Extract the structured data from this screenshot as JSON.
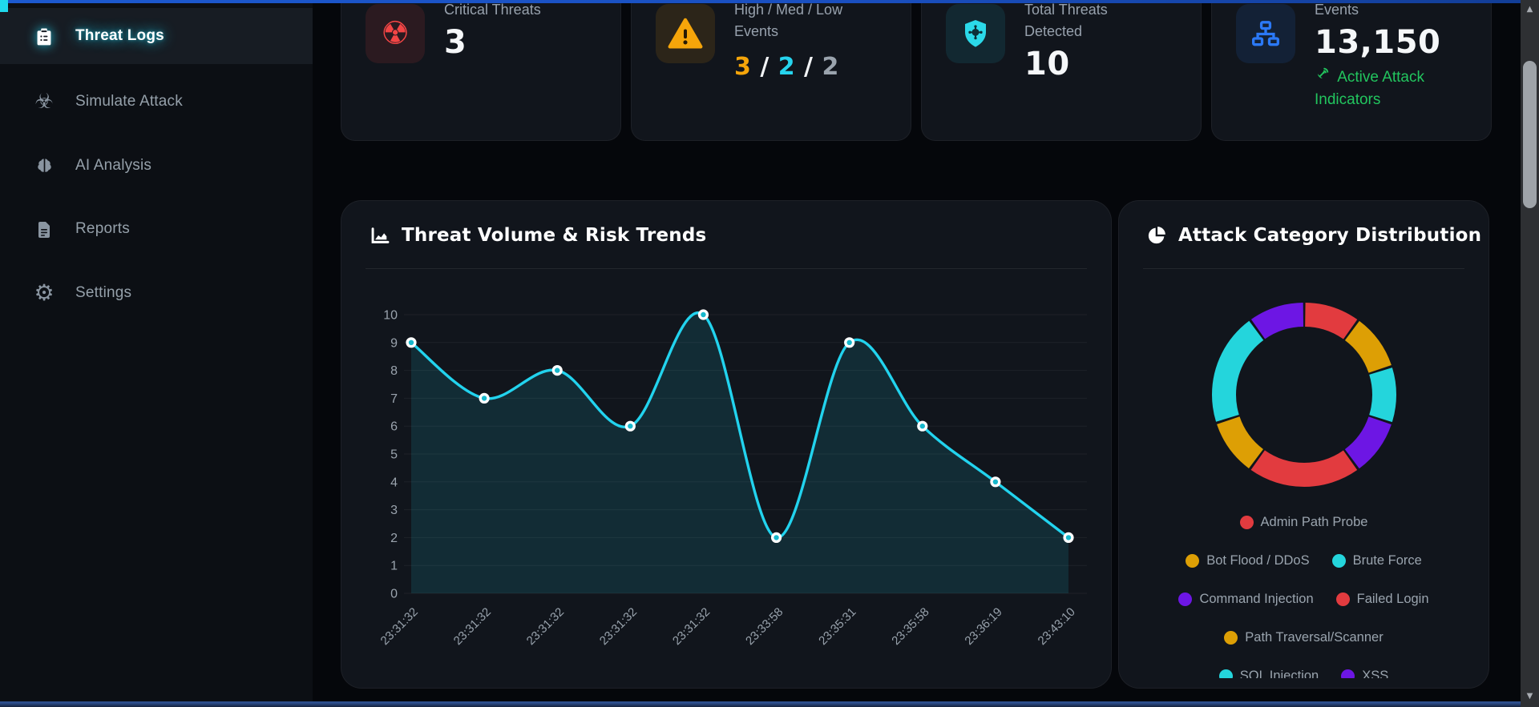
{
  "colors": {
    "accent_cyan": "#22d3ee",
    "red": "#e23b3f",
    "amber": "#dd9f05",
    "cyan": "#24d5dc",
    "purple": "#6d16e4",
    "green": "#22c55e",
    "blue": "#2b79f7",
    "top_strip": "#1c59cf",
    "top_strip_block": "#1fd9ec",
    "bottom_strip_top": "#2c4e8c",
    "bottom_strip": "#15223c"
  },
  "sidebar": {
    "items": [
      {
        "label": "Threat Logs",
        "icon": "clipboard-list-icon",
        "active": true
      },
      {
        "label": "Simulate Attack",
        "icon": "biohazard-icon",
        "active": false
      },
      {
        "label": "AI Analysis",
        "icon": "brain-icon",
        "active": false
      },
      {
        "label": "Reports",
        "icon": "file-report-icon",
        "active": false
      },
      {
        "label": "Settings",
        "icon": "gear-icon",
        "active": false
      }
    ]
  },
  "stat_cards": [
    {
      "id": "critical-threats",
      "icon": "radiation-icon",
      "icon_color": "#f24545",
      "icon_bg": "rgba(239,68,68,0.12)",
      "label": "Critical Threats",
      "value": "3"
    },
    {
      "id": "high-med-low-events",
      "icon": "warning-icon",
      "icon_color": "#f5a50a",
      "icon_bg": "rgba(245,158,11,0.12)",
      "label": "High / Med / Low Events",
      "value_parts": [
        {
          "text": "3",
          "color": "#f5a50a"
        },
        {
          "text": " / ",
          "color": "#f2f4f6"
        },
        {
          "text": "2",
          "color": "#26d4ee"
        },
        {
          "text": " / ",
          "color": "#f2f4f6"
        },
        {
          "text": "2",
          "color": "#9aa3ad"
        }
      ]
    },
    {
      "id": "total-threats-detected",
      "icon": "shield-virus-icon",
      "icon_color": "#2bd9e9",
      "icon_bg": "rgba(34,211,238,0.10)",
      "label": "Total Threats Detected",
      "value": "10"
    },
    {
      "id": "events",
      "icon": "network-icon",
      "icon_color": "#2b79f7",
      "icon_bg": "rgba(43,121,247,0.12)",
      "label": "Events",
      "value": "13,150",
      "sub_icon": "satellite-dish-icon",
      "sub_text": "Active Attack Indicators"
    }
  ],
  "trend_panel": {
    "icon": "area-chart-icon",
    "title": "Threat Volume & Risk Trends",
    "chart_data": {
      "type": "area",
      "x": [
        "23:31:32",
        "23:31:32",
        "23:31:32",
        "23:31:32",
        "23:31:32",
        "23:33:58",
        "23:35:31",
        "23:35:58",
        "23:36:19",
        "23:43:10"
      ],
      "values": [
        9,
        7,
        8,
        6,
        10,
        2,
        9,
        6,
        4,
        2
      ],
      "ylim": [
        0,
        10
      ],
      "ytick_step": 1,
      "grid": "on",
      "legend": "none",
      "line_color": "#22d3ee",
      "fill_color": "rgba(34,211,238,0.12)",
      "point_outer": "#ffffff",
      "point_inner": "#17b8cc"
    }
  },
  "donut_panel": {
    "icon": "pie-chart-icon",
    "title": "Attack Category Distribution",
    "chart_data": {
      "type": "doughnut",
      "labels": [
        "Admin Path Probe",
        "Bot Flood / DDoS",
        "Brute Force",
        "Command Injection",
        "Failed Login",
        "Path Traversal/Scanner",
        "SQL Injection",
        "XSS"
      ],
      "values": [
        1,
        1,
        1,
        1,
        2,
        1,
        2,
        1
      ],
      "colors": [
        "#e23b3f",
        "#dd9f05",
        "#24d5dc",
        "#6d16e4",
        "#e23b3f",
        "#dd9f05",
        "#24d5dc",
        "#6d16e4"
      ],
      "legend_position": "bottom"
    },
    "legend_rows": [
      [
        0
      ],
      [
        1,
        2
      ],
      [
        3,
        4
      ],
      [
        5
      ],
      [
        6,
        7
      ]
    ]
  }
}
